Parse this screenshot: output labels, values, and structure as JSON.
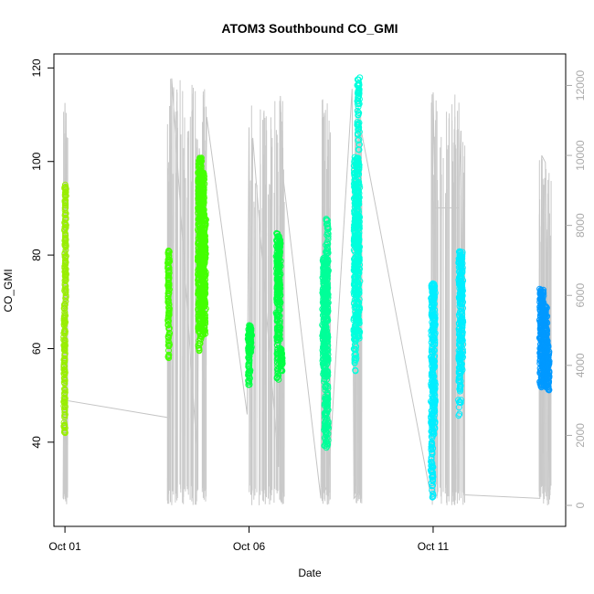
{
  "chart_data": {
    "type": "scatter",
    "title": "ATOM3 Southbound CO_GMI",
    "xlabel": "Date",
    "ylabel": "CO_GMI",
    "x_ticks": [
      "Oct 01",
      "Oct 06",
      "Oct 11"
    ],
    "xlim_days": [
      0.7,
      14.6
    ],
    "ylim": [
      22,
      123
    ],
    "y_ticks": [
      40,
      60,
      80,
      100,
      120
    ],
    "right_axis": {
      "label": "",
      "ylim": [
        -600,
        12900
      ],
      "ticks": [
        0,
        2000,
        4000,
        6000,
        8000,
        10000,
        12000
      ],
      "color": "#aaaaaa"
    },
    "grid": false,
    "legend": "none",
    "point_colors": [
      "#99ee00",
      "#44ff00",
      "#00ff44",
      "#00ff99",
      "#00ffdd",
      "#00eeff",
      "#0099ff"
    ],
    "series": [
      {
        "name": "",
        "color": "#99ee00",
        "x": [
          0.98,
          1.0,
          1.02
        ],
        "y": [
          42,
          70,
          95
        ]
      },
      {
        "name": "",
        "color": "#44ff00",
        "x": [
          3.8,
          3.83,
          4.62,
          4.66,
          4.7,
          4.74,
          4.78,
          4.82
        ],
        "y": [
          58,
          81,
          59,
          101,
          62,
          98,
          63,
          88
        ]
      },
      {
        "name": "",
        "color": "#00ff44",
        "x": [
          5.98,
          6.02,
          6.06,
          6.75,
          6.8,
          6.85,
          6.9
        ],
        "y": [
          52,
          65,
          59,
          53,
          85,
          60,
          55
        ]
      },
      {
        "name": "",
        "color": "#00ff99",
        "x": [
          8.0,
          8.05,
          8.1,
          8.15
        ],
        "y": [
          52,
          80,
          38,
          88
        ]
      },
      {
        "name": "",
        "color": "#00ffdd",
        "x": [
          8.85,
          8.9,
          8.95,
          9.0
        ],
        "y": [
          55,
          101,
          62,
          118
        ]
      },
      {
        "name": "",
        "color": "#00eeff",
        "x": [
          10.95,
          11.0,
          11.05,
          11.7,
          11.75,
          11.8
        ],
        "y": [
          27,
          74,
          41,
          45,
          81,
          55
        ]
      },
      {
        "name": "",
        "color": "#0099ff",
        "x": [
          13.9,
          13.95,
          14.0,
          14.05,
          14.1,
          14.15
        ],
        "y": [
          51,
          73,
          52,
          69,
          51,
          61
        ]
      }
    ],
    "altitude_line": {
      "x": [
        0.95,
        1.0,
        1.02,
        3.85,
        3.9,
        4.6,
        4.65,
        4.8,
        4.85,
        5.95,
        6.0,
        6.05,
        6.1,
        6.8,
        6.85,
        6.9,
        7.95,
        8.0,
        8.05,
        8.15,
        8.8,
        8.85,
        9.0,
        9.05,
        10.95,
        11.0,
        11.05,
        11.7,
        11.75,
        11.85,
        13.9,
        13.95,
        14.05,
        14.15
      ],
      "y": [
        200,
        11500,
        3000,
        2500,
        12200,
        1300,
        10200,
        5000,
        11100,
        2600,
        10800,
        300,
        10500,
        1100,
        11700,
        9600,
        200,
        11600,
        400,
        600,
        11900,
        200,
        400,
        10700,
        200,
        11800,
        8500,
        8500,
        10700,
        300,
        200,
        10000,
        9800,
        800
      ]
    }
  }
}
